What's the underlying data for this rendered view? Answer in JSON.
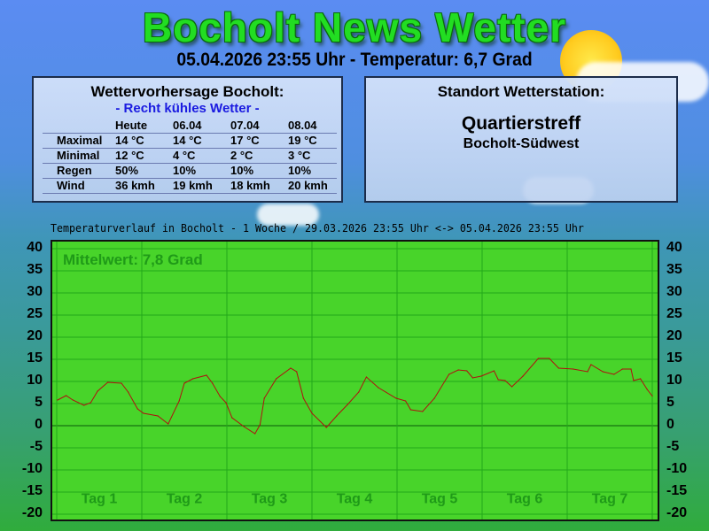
{
  "header": {
    "title": "Bocholt News Wetter",
    "subtitle": "05.04.2026 23:55 Uhr - Temperatur: 6,7 Grad"
  },
  "forecast": {
    "title": "Wettervorhersage Bocholt:",
    "summary": "- Recht kühles Wetter -",
    "columns": [
      "",
      "Heute",
      "06.04",
      "07.04",
      "08.04"
    ],
    "rows": [
      {
        "label": "Maximal",
        "values": [
          "14 °C",
          "14 °C",
          "17 °C",
          "19 °C"
        ]
      },
      {
        "label": "Minimal",
        "values": [
          "12 °C",
          "4 °C",
          "2 °C",
          "3 °C"
        ]
      },
      {
        "label": "Regen",
        "values": [
          "50%",
          "10%",
          "10%",
          "10%"
        ]
      },
      {
        "label": "Wind",
        "values": [
          "36 kmh",
          "19 kmh",
          "18 kmh",
          "20 kmh"
        ]
      }
    ]
  },
  "station": {
    "title": "Standort Wetterstation:",
    "name": "Quartierstreff",
    "location": "Bocholt-Südwest"
  },
  "chart_data": {
    "type": "line",
    "title": "Temperaturverlauf in Bocholt - 1 Woche / 29.03.2026 23:55 Uhr <-> 05.04.2026 23:55 Uhr",
    "annotation": "Mittelwert: 7,8 Grad",
    "xlabel": "",
    "ylabel": "",
    "x_tick_labels": [
      "Tag 1",
      "Tag 2",
      "Tag 3",
      "Tag 4",
      "Tag 5",
      "Tag 6",
      "Tag 7"
    ],
    "xlim": [
      0,
      7
    ],
    "ylim": [
      -20,
      40
    ],
    "y_ticks": [
      40,
      35,
      30,
      25,
      20,
      15,
      10,
      5,
      0,
      -5,
      -10,
      -15,
      -20
    ],
    "grid": true,
    "colors": {
      "background": "#48d42a",
      "line": "#b01010",
      "grid": "#22a81a",
      "label": "#1f9a18"
    },
    "x": [
      0.01,
      0.11,
      0.19,
      0.32,
      0.4,
      0.48,
      0.6,
      0.76,
      0.84,
      0.95,
      1.02,
      1.19,
      1.31,
      1.44,
      1.5,
      1.6,
      1.76,
      1.83,
      1.92,
      1.99,
      2.06,
      2.2,
      2.33,
      2.39,
      2.44,
      2.58,
      2.75,
      2.82,
      2.9,
      3.0,
      3.17,
      3.29,
      3.42,
      3.55,
      3.64,
      3.78,
      3.99,
      4.1,
      4.16,
      4.3,
      4.44,
      4.61,
      4.72,
      4.82,
      4.89,
      4.99,
      5.14,
      5.19,
      5.27,
      5.35,
      5.48,
      5.66,
      5.79,
      5.9,
      6.07,
      6.24,
      6.28,
      6.42,
      6.55,
      6.65,
      6.75,
      6.78,
      6.86,
      6.94,
      7.0
    ],
    "y": [
      5.8,
      6.8,
      5.8,
      4.6,
      5.2,
      7.8,
      9.8,
      9.6,
      7.6,
      3.8,
      2.8,
      2.2,
      0.4,
      5.6,
      9.6,
      10.6,
      11.4,
      9.6,
      6.6,
      5.2,
      1.8,
      -0.2,
      -1.8,
      0.2,
      6.2,
      10.6,
      13.0,
      12.2,
      6.2,
      2.8,
      -0.4,
      2.2,
      4.8,
      7.6,
      11.0,
      8.6,
      6.2,
      5.6,
      3.6,
      3.2,
      6.2,
      11.6,
      12.6,
      12.4,
      10.8,
      11.2,
      12.4,
      10.4,
      10.2,
      8.8,
      11.2,
      15.2,
      15.2,
      13.0,
      12.8,
      12.2,
      13.8,
      12.2,
      11.6,
      12.8,
      12.8,
      10.2,
      10.6,
      8.2,
      6.7
    ]
  }
}
